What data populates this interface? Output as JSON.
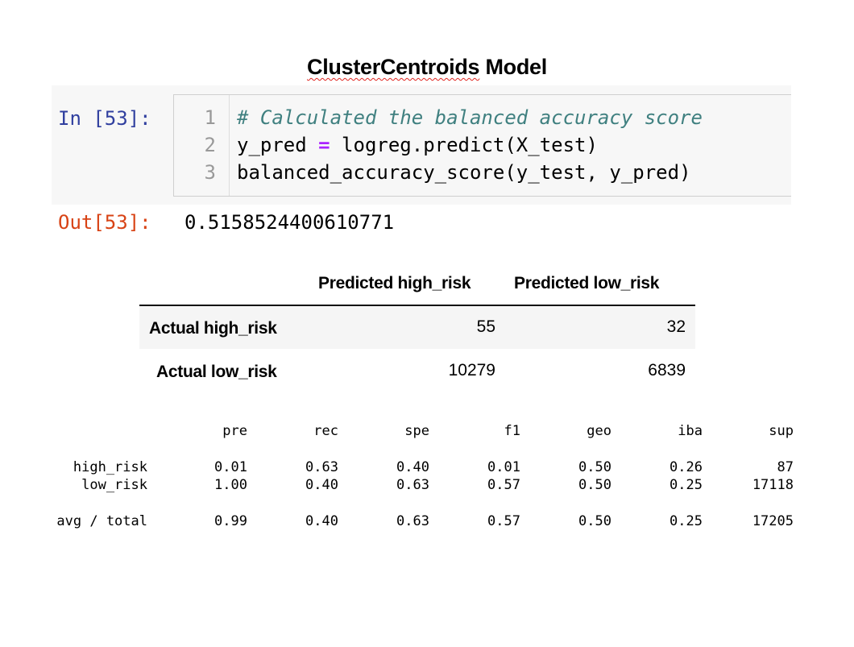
{
  "title": {
    "underlined": "ClusterCentroids",
    "rest": " Model"
  },
  "notebook": {
    "in_prompt": "In [53]:",
    "out_prompt": "Out[53]:",
    "lines": [
      {
        "no": "1",
        "text": "# Calculated the balanced accuracy score"
      },
      {
        "no": "2",
        "pre": "y_pred ",
        "op": "=",
        "post": " logreg.predict(X_test)"
      },
      {
        "no": "3",
        "text": "balanced_accuracy_score(y_test, y_pred)"
      }
    ],
    "output": "0.5158524400610771"
  },
  "confusion_matrix": {
    "columns": [
      "Predicted high_risk",
      "Predicted low_risk"
    ],
    "rows": [
      {
        "label": "Actual high_risk",
        "values": [
          "55",
          "32"
        ]
      },
      {
        "label": "Actual low_risk",
        "values": [
          "10279",
          "6839"
        ]
      }
    ]
  },
  "classification_report": {
    "headers": [
      "pre",
      "rec",
      "spe",
      "f1",
      "geo",
      "iba",
      "sup"
    ],
    "rows": [
      {
        "label": "high_risk",
        "values": [
          "0.01",
          "0.63",
          "0.40",
          "0.01",
          "0.50",
          "0.26",
          "87"
        ]
      },
      {
        "label": "low_risk",
        "values": [
          "1.00",
          "0.40",
          "0.63",
          "0.57",
          "0.50",
          "0.25",
          "17118"
        ]
      },
      {
        "label": "avg / total",
        "values": [
          "0.99",
          "0.40",
          "0.63",
          "0.57",
          "0.50",
          "0.25",
          "17205"
        ]
      }
    ]
  }
}
